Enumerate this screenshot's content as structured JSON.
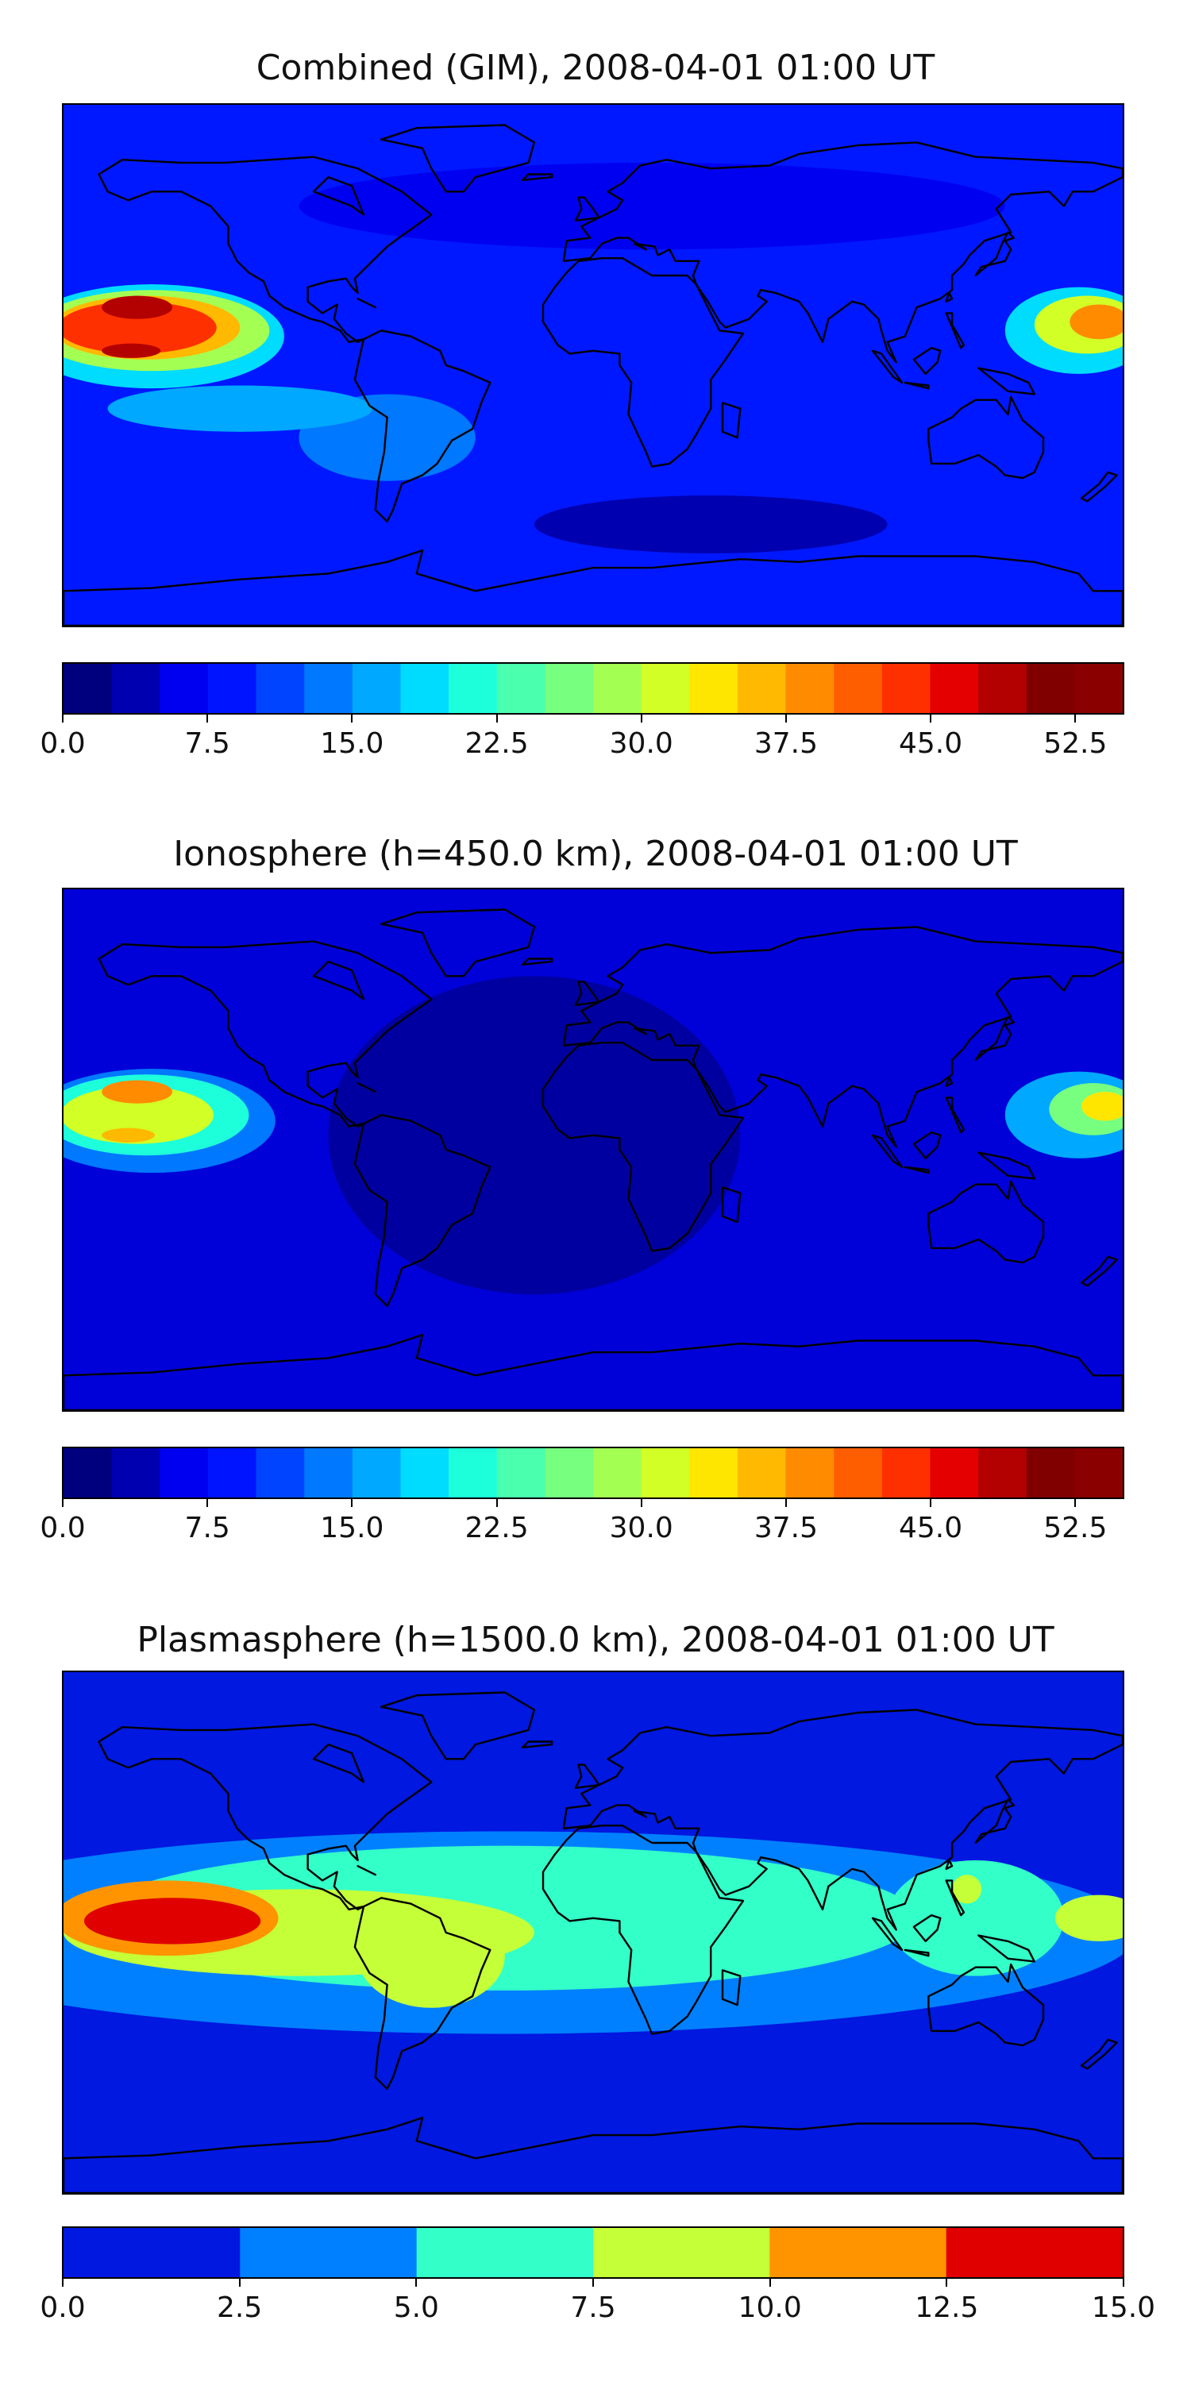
{
  "panels": [
    {
      "id": "combined",
      "title": "Combined (GIM), 2008-04-01 01:00 UT",
      "colorbar": {
        "min": 0,
        "max": 55,
        "step": 2.5,
        "colors": [
          "#00007f",
          "#0000b0",
          "#0000f0",
          "#0014ff",
          "#0044ff",
          "#0078ff",
          "#00a8ff",
          "#00dcfe",
          "#1dffdb",
          "#4affad",
          "#77ff80",
          "#a4ff53",
          "#d1ff26",
          "#ffe600",
          "#ffb900",
          "#ff8b00",
          "#ff5e00",
          "#ff3000",
          "#e50000",
          "#b30000",
          "#800000",
          "#8a0000"
        ],
        "ticks": [
          "0.0",
          "7.5",
          "15.0",
          "22.5",
          "30.0",
          "37.5",
          "45.0",
          "52.5"
        ],
        "tick_values": [
          0,
          7.5,
          15,
          22.5,
          30,
          37.5,
          45,
          52.5
        ]
      },
      "field": {
        "background": "#0018ff",
        "blobs": [
          {
            "lon": -150,
            "lat": 10,
            "rx": 45,
            "ry": 18,
            "color": "#00dcfe"
          },
          {
            "lon": -150,
            "lat": 12,
            "rx": 40,
            "ry": 14,
            "color": "#a4ff53"
          },
          {
            "lon": -152,
            "lat": 13,
            "rx": 32,
            "ry": 11,
            "color": "#ffb900"
          },
          {
            "lon": -155,
            "lat": 13,
            "rx": 27,
            "ry": 9,
            "color": "#ff3000"
          },
          {
            "lon": -155,
            "lat": 20,
            "rx": 12,
            "ry": 4,
            "color": "#b30000"
          },
          {
            "lon": -157,
            "lat": 5,
            "rx": 10,
            "ry": 2.5,
            "color": "#b30000"
          },
          {
            "lon": 165,
            "lat": 12,
            "rx": 25,
            "ry": 15,
            "color": "#00dcfe"
          },
          {
            "lon": 168,
            "lat": 14,
            "rx": 18,
            "ry": 10,
            "color": "#d1ff26"
          },
          {
            "lon": 172,
            "lat": 15,
            "rx": 10,
            "ry": 6,
            "color": "#ff8b00"
          },
          {
            "lon": -70,
            "lat": -25,
            "rx": 30,
            "ry": 15,
            "color": "#0078ff"
          },
          {
            "lon": -120,
            "lat": -15,
            "rx": 45,
            "ry": 8,
            "color": "#00a8ff"
          },
          {
            "lon": 20,
            "lat": 55,
            "rx": 120,
            "ry": 15,
            "color": "#0000f0"
          },
          {
            "lon": 40,
            "lat": -55,
            "rx": 60,
            "ry": 10,
            "color": "#0000b0"
          }
        ]
      }
    },
    {
      "id": "ionosphere",
      "title": "Ionosphere  (h=450.0 km), 2008-04-01 01:00 UT",
      "colorbar": {
        "min": 0,
        "max": 55,
        "step": 2.5,
        "colors": [
          "#00007f",
          "#0000b0",
          "#0000f0",
          "#0014ff",
          "#0044ff",
          "#0078ff",
          "#00a8ff",
          "#00dcfe",
          "#1dffdb",
          "#4affad",
          "#77ff80",
          "#a4ff53",
          "#d1ff26",
          "#ffe600",
          "#ffb900",
          "#ff8b00",
          "#ff5e00",
          "#ff3000",
          "#e50000",
          "#b30000",
          "#800000",
          "#8a0000"
        ],
        "ticks": [
          "0.0",
          "7.5",
          "15.0",
          "22.5",
          "30.0",
          "37.5",
          "45.0",
          "52.5"
        ],
        "tick_values": [
          0,
          7.5,
          15,
          22.5,
          30,
          37.5,
          45,
          52.5
        ]
      },
      "field": {
        "background": "#0000d8",
        "blobs": [
          {
            "lon": -20,
            "lat": 5,
            "rx": 70,
            "ry": 55,
            "color": "#0000a0"
          },
          {
            "lon": -150,
            "lat": 10,
            "rx": 42,
            "ry": 18,
            "color": "#0078ff"
          },
          {
            "lon": -152,
            "lat": 12,
            "rx": 35,
            "ry": 14,
            "color": "#1dffdb"
          },
          {
            "lon": -155,
            "lat": 12,
            "rx": 26,
            "ry": 10,
            "color": "#d1ff26"
          },
          {
            "lon": -155,
            "lat": 20,
            "rx": 12,
            "ry": 4,
            "color": "#ff8b00"
          },
          {
            "lon": -158,
            "lat": 5,
            "rx": 9,
            "ry": 2.5,
            "color": "#ffb900"
          },
          {
            "lon": 165,
            "lat": 12,
            "rx": 25,
            "ry": 15,
            "color": "#00a8ff"
          },
          {
            "lon": 170,
            "lat": 14,
            "rx": 15,
            "ry": 9,
            "color": "#77ff80"
          },
          {
            "lon": 174,
            "lat": 15,
            "rx": 8,
            "ry": 5,
            "color": "#ffe600"
          }
        ]
      }
    },
    {
      "id": "plasmasphere",
      "title": "Plasmasphere (h=1500.0 km), 2008-04-01 01:00 UT",
      "colorbar": {
        "min": 0,
        "max": 15,
        "step": 2.5,
        "colors": [
          "#0018e0",
          "#0080ff",
          "#33ffc8",
          "#c4ff38",
          "#ff9400",
          "#e00000"
        ],
        "ticks": [
          "0.0",
          "2.5",
          "5.0",
          "7.5",
          "10.0",
          "12.5",
          "15.0"
        ],
        "tick_values": [
          0,
          2.5,
          5,
          7.5,
          10,
          12.5,
          15
        ]
      },
      "field": {
        "background": "#0018e0",
        "blobs": [
          {
            "lon": -30,
            "lat": 0,
            "rx": 215,
            "ry": 35,
            "color": "#0080ff"
          },
          {
            "lon": -30,
            "lat": 5,
            "rx": 140,
            "ry": 25,
            "color": "#33ffc8"
          },
          {
            "lon": 130,
            "lat": 5,
            "rx": 30,
            "ry": 20,
            "color": "#33ffc8"
          },
          {
            "lon": -100,
            "lat": 0,
            "rx": 80,
            "ry": 15,
            "color": "#c4ff38"
          },
          {
            "lon": -55,
            "lat": -8,
            "rx": 25,
            "ry": 18,
            "color": "#c4ff38"
          },
          {
            "lon": 172,
            "lat": 5,
            "rx": 15,
            "ry": 8,
            "color": "#c4ff38"
          },
          {
            "lon": 127,
            "lat": 15,
            "rx": 5,
            "ry": 5,
            "color": "#c4ff38"
          },
          {
            "lon": -145,
            "lat": 5,
            "rx": 38,
            "ry": 13,
            "color": "#ff9400"
          },
          {
            "lon": -143,
            "lat": 4,
            "rx": 30,
            "ry": 8,
            "color": "#e00000"
          }
        ]
      }
    }
  ]
}
